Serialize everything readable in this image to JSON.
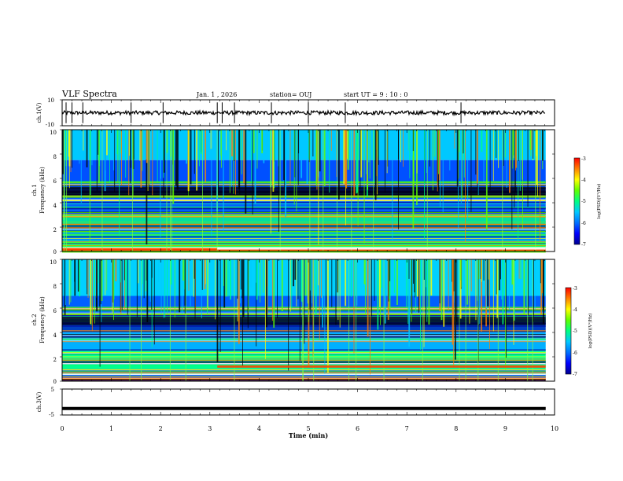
{
  "header": {
    "title": "VLF Spectra",
    "date": "Jan. 1 , 2026",
    "station": "station= OUJ",
    "start": "start UT = 9 : 10 : 0"
  },
  "chart_data": [
    {
      "type": "line",
      "id": "ch1-waveform",
      "ylabel": "ch.1(V)",
      "ylim": [
        -10,
        10
      ],
      "y_ticks": [
        "10",
        "-10"
      ],
      "xlim": [
        0,
        10
      ],
      "mean_value": 0,
      "spike_times_min": [
        0.08,
        0.2,
        0.42,
        1.4,
        2.05,
        3.15,
        3.25,
        3.5,
        4.25,
        5.0,
        5.75,
        8.1
      ]
    },
    {
      "type": "heatmap",
      "id": "ch1-spectrogram",
      "ylabel_lines": [
        "ch.1",
        "Frequency (kHz)"
      ],
      "ylim": [
        0,
        10
      ],
      "y_ticks": [
        "0",
        "2",
        "4",
        "6",
        "8",
        "10"
      ],
      "xlim": [
        0,
        10
      ],
      "data_end_min": 9.82,
      "colorbar": {
        "label": "log(PSD)(V²/Hz)",
        "range": [
          -7,
          -3
        ],
        "ticks": [
          "-3",
          "-4",
          "-5",
          "-6",
          "-7"
        ]
      }
    },
    {
      "type": "heatmap",
      "id": "ch2-spectrogram",
      "ylabel_lines": [
        "ch.2",
        "Frequency (kHz)"
      ],
      "ylim": [
        0,
        10
      ],
      "y_ticks": [
        "0",
        "2",
        "4",
        "6",
        "8",
        "10"
      ],
      "xlim": [
        0,
        10
      ],
      "data_end_min": 9.82,
      "colorbar": {
        "label": "log(PSD)(V²/Hz)",
        "range": [
          -7,
          -3
        ],
        "ticks": [
          "-3",
          "-4",
          "-5",
          "-6",
          "-7"
        ]
      }
    },
    {
      "type": "line",
      "id": "ch3-waveform",
      "ylabel": "ch.3(V)",
      "ylim": [
        -5,
        5
      ],
      "y_ticks": [
        "5",
        "-5"
      ],
      "xlim": [
        0,
        10
      ],
      "mean_value": -2.5
    }
  ],
  "x_axis": {
    "label": "Time (min)",
    "ticks": [
      "0",
      "1",
      "2",
      "3",
      "4",
      "5",
      "6",
      "7",
      "8",
      "9",
      "10"
    ]
  },
  "colors": {
    "colormap": [
      "#000090",
      "#0000ff",
      "#0070ff",
      "#00c8ff",
      "#00ff80",
      "#60ff00",
      "#ffff00",
      "#ff8000",
      "#ff0000",
      "#ffffff"
    ]
  }
}
